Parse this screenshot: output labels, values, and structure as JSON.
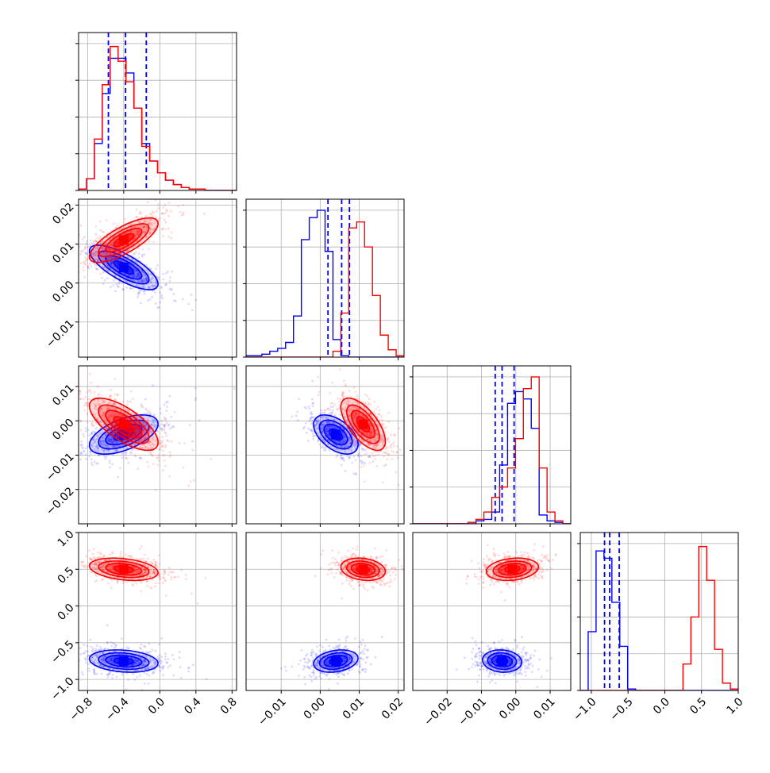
{
  "chart_data": {
    "type": "corner",
    "title": "",
    "colors": {
      "series_a": "#0000ff",
      "series_b": "#ff0000",
      "grid": "#b0b0b0",
      "axes": "#000000"
    },
    "grid": true,
    "parameters": [
      {
        "index": 0,
        "range": [
          -0.9,
          0.85
        ],
        "ticks": [
          -0.8,
          -0.4,
          0.0,
          0.4,
          0.8
        ],
        "tick_labels": [
          "−0.8",
          "−0.4",
          "0.0",
          "0.4",
          "0.8"
        ]
      },
      {
        "index": 1,
        "range": [
          -0.019,
          0.0215
        ],
        "ticks": [
          -0.01,
          0.0,
          0.01,
          0.02
        ],
        "tick_labels": [
          "−0.01",
          "0.00",
          "0.01",
          "0.02"
        ]
      },
      {
        "index": 2,
        "range": [
          -0.03,
          0.016
        ],
        "ticks": [
          -0.02,
          -0.01,
          0.0,
          0.01
        ],
        "tick_labels": [
          "−0.02",
          "−0.01",
          "0.00",
          "0.01"
        ]
      },
      {
        "index": 3,
        "range": [
          -1.15,
          1.0
        ],
        "ticks": [
          -1.0,
          -0.5,
          0.0,
          0.5,
          1.0
        ],
        "tick_labels": [
          "−1.0",
          "−0.5",
          "0.0",
          "0.5",
          "1.0"
        ]
      }
    ],
    "series": [
      {
        "color_key": "series_a",
        "means": [
          -0.4,
          0.004,
          -0.004,
          -0.75
        ],
        "sds": [
          0.2,
          0.003,
          0.003,
          0.08
        ],
        "quantiles": [
          [
            -0.57,
            -0.38,
            -0.15
          ],
          [
            0.002,
            0.0055,
            0.0075
          ],
          [
            -0.006,
            -0.004,
            -0.0005
          ],
          [
            -0.82,
            -0.75,
            -0.62
          ]
        ],
        "hists": [
          [
            1,
            8,
            32,
            66,
            90,
            90,
            80,
            56,
            32,
            20,
            12,
            7,
            4,
            2,
            1,
            1,
            0,
            0,
            0,
            0
          ],
          [
            1,
            1,
            2,
            4,
            6,
            10,
            28,
            80,
            95,
            100,
            72,
            12,
            1,
            0,
            0,
            0,
            0,
            0,
            0,
            0
          ],
          [
            0,
            0,
            0,
            0,
            0,
            0,
            0,
            0,
            2,
            3,
            8,
            40,
            82,
            90,
            85,
            65,
            6,
            2,
            1,
            0
          ],
          [
            0,
            40,
            95,
            90,
            60,
            30,
            1,
            0,
            0,
            0,
            0,
            0,
            0,
            0,
            0,
            0,
            0,
            0,
            0,
            0
          ]
        ],
        "corr": [
          [
            0,
            -0.75,
            0.55,
            -0.2
          ],
          [
            -0.75,
            0,
            -0.5,
            0.25
          ],
          [
            0.55,
            -0.5,
            0,
            -0.1
          ],
          [
            -0.2,
            0.25,
            -0.1,
            0
          ]
        ]
      },
      {
        "color_key": "series_b",
        "means": [
          -0.4,
          0.011,
          -0.001,
          0.5
        ],
        "sds": [
          0.2,
          0.003,
          0.004,
          0.08
        ],
        "quantiles": [
          [],
          [],
          [],
          []
        ],
        "hists": [
          [
            1,
            8,
            35,
            72,
            98,
            88,
            74,
            56,
            30,
            20,
            12,
            7,
            4,
            2,
            1,
            1,
            0,
            0,
            0,
            0
          ],
          [
            0,
            0,
            0,
            0,
            0,
            0,
            0,
            0,
            0,
            0,
            0,
            4,
            30,
            88,
            92,
            75,
            42,
            15,
            5,
            1
          ],
          [
            0,
            0,
            0,
            0,
            0,
            0,
            0,
            1,
            3,
            8,
            18,
            25,
            38,
            58,
            92,
            100,
            38,
            8,
            2,
            0
          ],
          [
            0,
            0,
            0,
            0,
            0,
            0,
            0,
            0,
            0,
            0,
            0,
            0,
            0,
            18,
            50,
            98,
            75,
            28,
            5,
            1
          ]
        ],
        "corr": [
          [
            0,
            0.75,
            -0.7,
            -0.3
          ],
          [
            0.75,
            0,
            -0.65,
            -0.2
          ],
          [
            -0.7,
            -0.65,
            0,
            0.2
          ],
          [
            -0.3,
            -0.2,
            0.2,
            0
          ]
        ]
      }
    ]
  }
}
